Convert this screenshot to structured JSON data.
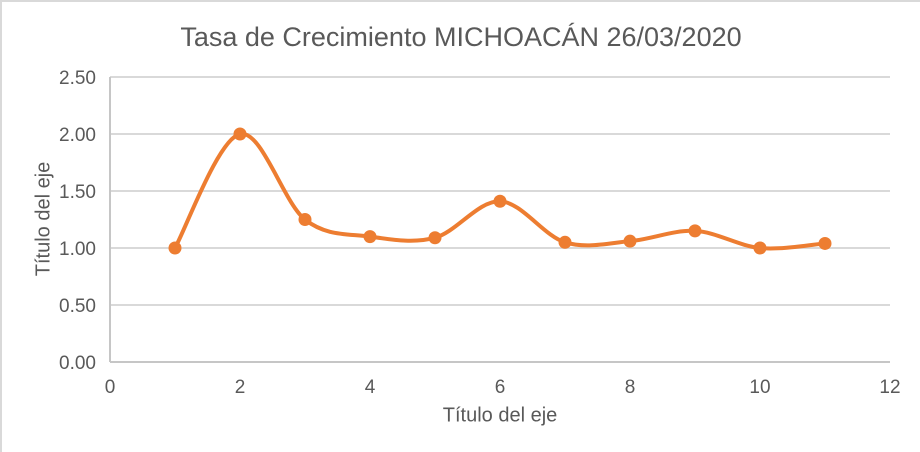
{
  "chart_data": {
    "type": "line",
    "title": "Tasa de Crecimiento MICHOACÁN 26/03/2020",
    "xlabel": "Título del eje",
    "ylabel": "Título del eje",
    "x": [
      1,
      2,
      3,
      4,
      5,
      6,
      7,
      8,
      9,
      10,
      11
    ],
    "values": [
      1.0,
      2.0,
      1.25,
      1.1,
      1.09,
      1.41,
      1.05,
      1.06,
      1.15,
      1.0,
      1.04
    ],
    "series_name": "Tasa de crecimiento",
    "xlim": [
      0,
      12
    ],
    "ylim": [
      0,
      2.5
    ],
    "x_ticks": [
      "0",
      "2",
      "4",
      "6",
      "8",
      "10",
      "12"
    ],
    "y_ticks": [
      "0.00",
      "0.50",
      "1.00",
      "1.50",
      "2.00",
      "2.50"
    ],
    "grid": "horizontal",
    "legend": "none",
    "smooth_line": true,
    "marker": "circle",
    "colors": {
      "series": "#ED7D31",
      "gridline": "#D9D9D9",
      "axis_line": "#C6C6C6",
      "text": "#595959",
      "frame_border": "#D9D9D9",
      "background": "#FFFFFF"
    }
  }
}
